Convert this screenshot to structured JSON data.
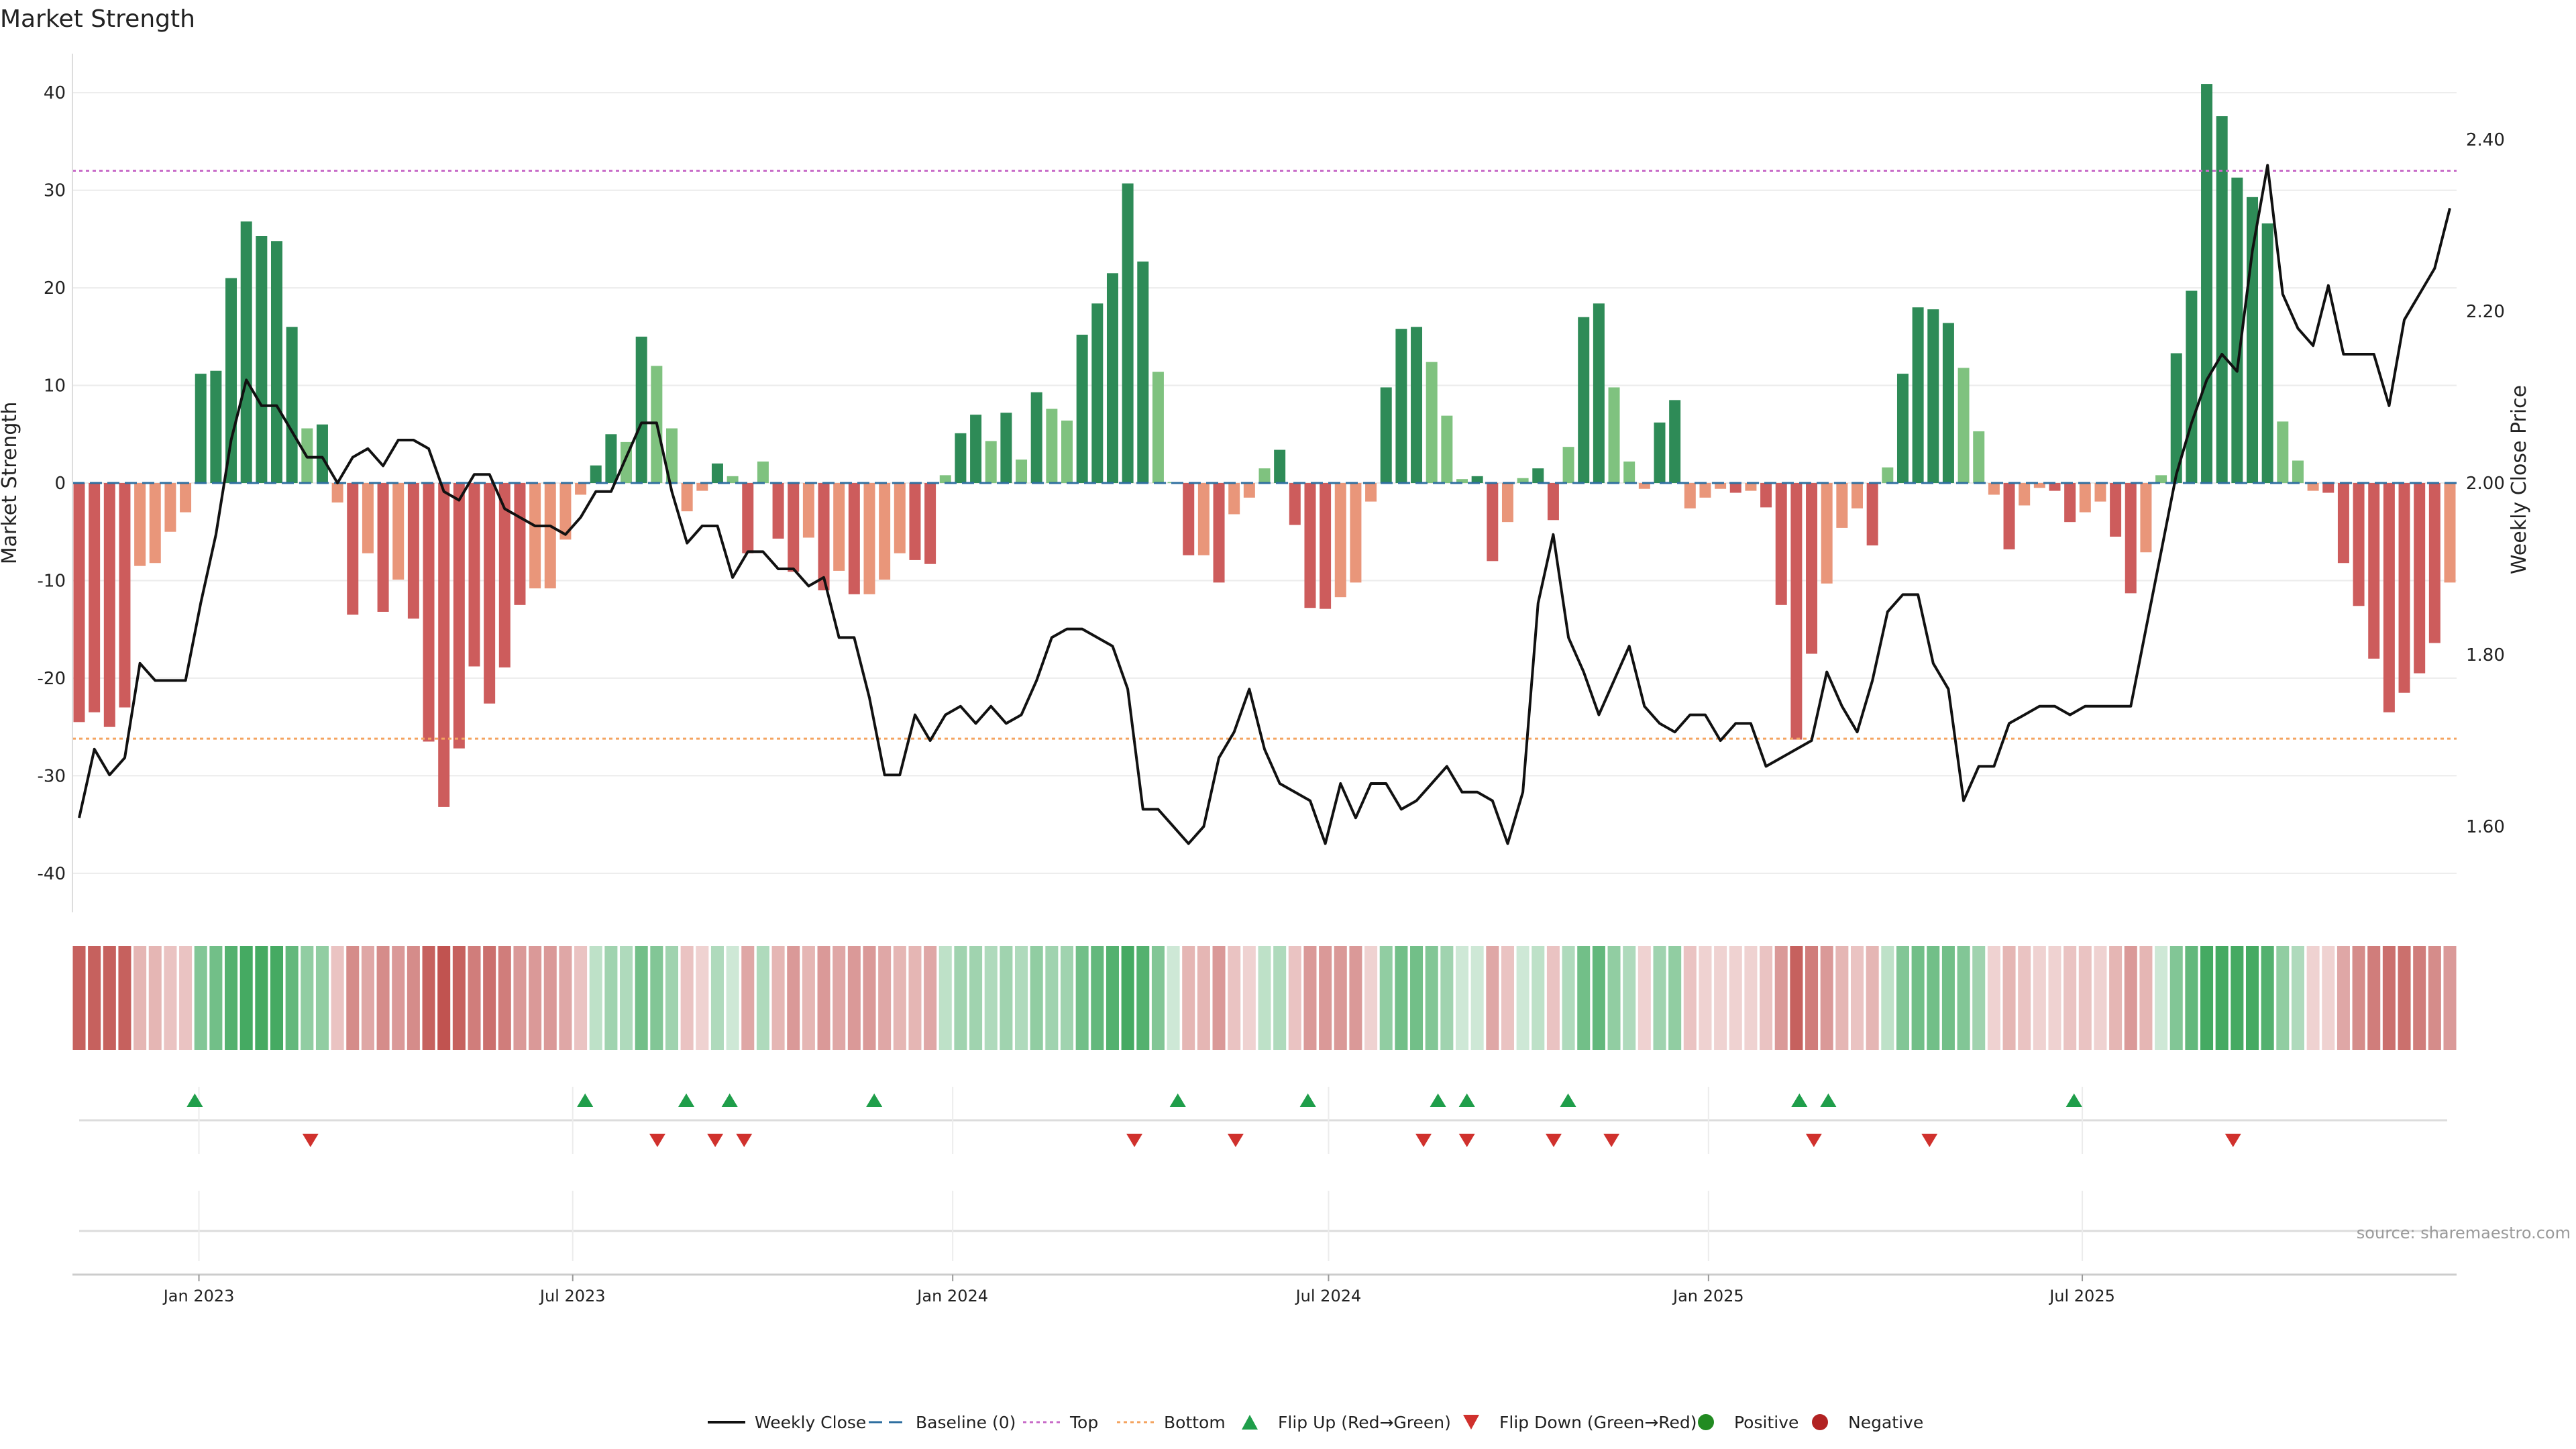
{
  "title": "Market Strength",
  "source": "source: sharemaestro.com",
  "colors": {
    "pos_dark": "#2e8b57",
    "pos_light": "#7fc27f",
    "neg_dark": "#cd5c5c",
    "neg_light": "#e9967a",
    "price": "#111111",
    "baseline": "#2f6fa0",
    "top": "#c86cc8",
    "bottom": "#f4a460",
    "flip_up": "#1f9e4a",
    "flip_down": "#d0312d",
    "positive": "#228b22",
    "negative": "#b22222",
    "heat_pos": "#41a85f",
    "heat_neg": "#c0504d",
    "grid": "#ebebeb"
  },
  "chart_data": {
    "type": "bar",
    "ylabel": "Market Strength",
    "y2label": "Weekly Close Price",
    "ylim": [
      -44,
      44
    ],
    "y2lim": [
      1.5,
      2.5
    ],
    "yticks": [
      -40,
      -30,
      -20,
      -10,
      0,
      10,
      20,
      30,
      40
    ],
    "y2ticks": [
      "1.60",
      "1.80",
      "2.00",
      "2.20",
      "2.40"
    ],
    "y2tick_values": [
      1.6,
      1.8,
      2.0,
      2.2,
      2.4
    ],
    "x_start": "2022-11-04",
    "x_end": "2025-12-26",
    "xticks": [
      "Jan 2023",
      "Jul 2023",
      "Jan 2024",
      "Jul 2024",
      "Jan 2025",
      "Jul 2025"
    ],
    "xtick_dates": [
      "2023-01-01",
      "2023-07-01",
      "2024-01-01",
      "2024-07-01",
      "2025-01-01",
      "2025-07-01"
    ],
    "top_threshold": 32,
    "bottom_threshold": -26.2,
    "strength": [
      -24.5,
      -23.5,
      -25,
      -23,
      -8.5,
      -8.2,
      -5,
      -3,
      11.2,
      11.5,
      21,
      26.8,
      25.3,
      24.8,
      16,
      5.6,
      6,
      -2,
      -13.5,
      -7.2,
      -13.2,
      -9.9,
      -13.9,
      -26.5,
      -33.2,
      -27.2,
      -18.8,
      -22.6,
      -18.9,
      -12.5,
      -10.8,
      -10.8,
      -5.8,
      -1.2,
      1.8,
      5,
      4.2,
      15,
      12,
      5.6,
      -2.9,
      -0.8,
      2,
      0.7,
      -7.2,
      2.2,
      -5.7,
      -9.1,
      -5.6,
      -11,
      -9,
      -11.4,
      -11.4,
      -9.9,
      -7.2,
      -7.9,
      -8.3,
      0.8,
      5.1,
      7,
      4.3,
      7.2,
      2.4,
      9.3,
      7.6,
      6.4,
      15.2,
      18.4,
      21.5,
      30.7,
      22.7,
      11.4,
      0.1,
      -7.4,
      -7.4,
      -10.2,
      -3.2,
      -1.5,
      1.5,
      3.4,
      -4.3,
      -12.8,
      -12.9,
      -11.7,
      -10.2,
      -1.9,
      9.8,
      15.8,
      16,
      12.4,
      6.9,
      0.4,
      0.7,
      -8,
      -4,
      0.5,
      1.5,
      -3.8,
      3.7,
      17,
      18.4,
      9.8,
      2.2,
      -0.6,
      6.2,
      8.5,
      -2.6,
      -1.5,
      -0.6,
      -1,
      -0.8,
      -2.5,
      -12.5,
      -26.3,
      -17.5,
      -10.3,
      -4.6,
      -2.6,
      -6.4,
      1.6,
      11.2,
      18,
      17.8,
      16.4,
      11.8,
      5.3,
      -1.2,
      -6.8,
      -2.3,
      -0.5,
      -0.8,
      -4,
      -3,
      -1.9,
      -5.5,
      -11.3,
      -7.1,
      0.8,
      13.3,
      19.7,
      40.9,
      37.6,
      31.3,
      29.3,
      26.6,
      6.3,
      2.3,
      -0.8,
      -1,
      -8.2,
      -12.6,
      -18,
      -23.5,
      -21.5,
      -19.5,
      -16.4,
      -10.2
    ],
    "close": [
      1.61,
      1.69,
      1.66,
      1.68,
      1.79,
      1.77,
      1.77,
      1.77,
      1.86,
      1.94,
      2.05,
      2.12,
      2.09,
      2.09,
      2.06,
      2.03,
      2.03,
      2.0,
      2.03,
      2.04,
      2.02,
      2.05,
      2.05,
      2.04,
      1.99,
      1.98,
      2.01,
      2.01,
      1.97,
      1.96,
      1.95,
      1.95,
      1.94,
      1.96,
      1.99,
      1.99,
      2.03,
      2.07,
      2.07,
      1.99,
      1.93,
      1.95,
      1.95,
      1.89,
      1.92,
      1.92,
      1.9,
      1.9,
      1.88,
      1.89,
      1.82,
      1.82,
      1.75,
      1.66,
      1.66,
      1.73,
      1.7,
      1.73,
      1.74,
      1.72,
      1.74,
      1.72,
      1.73,
      1.77,
      1.82,
      1.83,
      1.83,
      1.82,
      1.81,
      1.76,
      1.62,
      1.62,
      1.6,
      1.58,
      1.6,
      1.68,
      1.71,
      1.76,
      1.69,
      1.65,
      1.64,
      1.63,
      1.58,
      1.65,
      1.61,
      1.65,
      1.65,
      1.62,
      1.63,
      1.65,
      1.67,
      1.64,
      1.64,
      1.63,
      1.58,
      1.64,
      1.86,
      1.94,
      1.82,
      1.78,
      1.73,
      1.77,
      1.81,
      1.74,
      1.72,
      1.71,
      1.73,
      1.73,
      1.7,
      1.72,
      1.72,
      1.67,
      1.68,
      1.69,
      1.7,
      1.78,
      1.74,
      1.71,
      1.77,
      1.85,
      1.87,
      1.87,
      1.79,
      1.76,
      1.63,
      1.67,
      1.67,
      1.72,
      1.73,
      1.74,
      1.74,
      1.73,
      1.74,
      1.74,
      1.74,
      1.74,
      1.83,
      1.92,
      2.01,
      2.07,
      2.12,
      2.15,
      2.13,
      2.27,
      2.37,
      2.22,
      2.18,
      2.16,
      2.23,
      2.15,
      2.15,
      2.15,
      2.09,
      2.19,
      2.22,
      2.25,
      2.32
    ],
    "heat_levels": [
      -0.9,
      -0.9,
      -0.9,
      -0.9,
      -0.3,
      -0.3,
      -0.2,
      -0.2,
      0.6,
      0.7,
      0.9,
      1.0,
      1.0,
      1.0,
      0.8,
      0.5,
      0.5,
      -0.2,
      -0.6,
      -0.4,
      -0.6,
      -0.5,
      -0.6,
      -0.9,
      -1.0,
      -0.9,
      -0.7,
      -0.8,
      -0.7,
      -0.5,
      -0.5,
      -0.5,
      -0.4,
      -0.2,
      0.2,
      0.4,
      0.3,
      0.7,
      0.6,
      0.4,
      -0.2,
      -0.1,
      0.3,
      0.1,
      -0.4,
      0.3,
      -0.3,
      -0.5,
      -0.3,
      -0.5,
      -0.4,
      -0.5,
      -0.5,
      -0.4,
      -0.3,
      -0.3,
      -0.4,
      0.2,
      0.4,
      0.4,
      0.3,
      0.4,
      0.3,
      0.5,
      0.4,
      0.4,
      0.7,
      0.8,
      0.9,
      1.0,
      0.9,
      0.6,
      0.1,
      -0.3,
      -0.3,
      -0.5,
      -0.2,
      -0.1,
      0.2,
      0.3,
      -0.2,
      -0.5,
      -0.5,
      -0.5,
      -0.5,
      -0.1,
      0.5,
      0.7,
      0.7,
      0.6,
      0.4,
      0.1,
      0.1,
      -0.4,
      -0.2,
      0.1,
      0.2,
      -0.2,
      0.3,
      0.7,
      0.8,
      0.5,
      0.3,
      -0.1,
      0.4,
      0.5,
      -0.2,
      -0.1,
      -0.1,
      -0.1,
      -0.1,
      -0.2,
      -0.5,
      -0.9,
      -0.7,
      -0.5,
      -0.3,
      -0.2,
      -0.3,
      0.2,
      0.6,
      0.7,
      0.7,
      0.7,
      0.6,
      0.4,
      -0.1,
      -0.3,
      -0.2,
      -0.1,
      -0.1,
      -0.2,
      -0.2,
      -0.1,
      -0.3,
      -0.5,
      -0.3,
      0.1,
      0.6,
      0.8,
      1.0,
      1.0,
      1.0,
      1.0,
      0.9,
      0.5,
      0.3,
      -0.1,
      -0.1,
      -0.4,
      -0.6,
      -0.7,
      -0.8,
      -0.8,
      -0.7,
      -0.6,
      -0.5
    ],
    "flip_up_dates": [
      "2022-12-30",
      "2023-07-07",
      "2023-08-25",
      "2023-09-15",
      "2023-11-24",
      "2024-04-19",
      "2024-06-21",
      "2024-08-23",
      "2024-09-06",
      "2024-10-25",
      "2025-02-14",
      "2025-02-28",
      "2025-06-27"
    ],
    "flip_down_dates": [
      "2023-02-24",
      "2023-08-11",
      "2023-09-08",
      "2023-09-22",
      "2024-03-29",
      "2024-05-17",
      "2024-08-16",
      "2024-09-06",
      "2024-10-18",
      "2024-11-15",
      "2025-02-21",
      "2025-04-18",
      "2025-09-12"
    ],
    "legend": [
      {
        "label": "Weekly Close",
        "kind": "line"
      },
      {
        "label": "Baseline (0)",
        "kind": "dash"
      },
      {
        "label": "Top",
        "kind": "dot-purple"
      },
      {
        "label": "Bottom",
        "kind": "dot-orange"
      },
      {
        "label": "Flip Up (Red→Green)",
        "kind": "tri-up"
      },
      {
        "label": "Flip Down (Green→Red)",
        "kind": "tri-down"
      },
      {
        "label": "Positive",
        "kind": "dot-green"
      },
      {
        "label": "Negative",
        "kind": "dot-red"
      }
    ]
  }
}
